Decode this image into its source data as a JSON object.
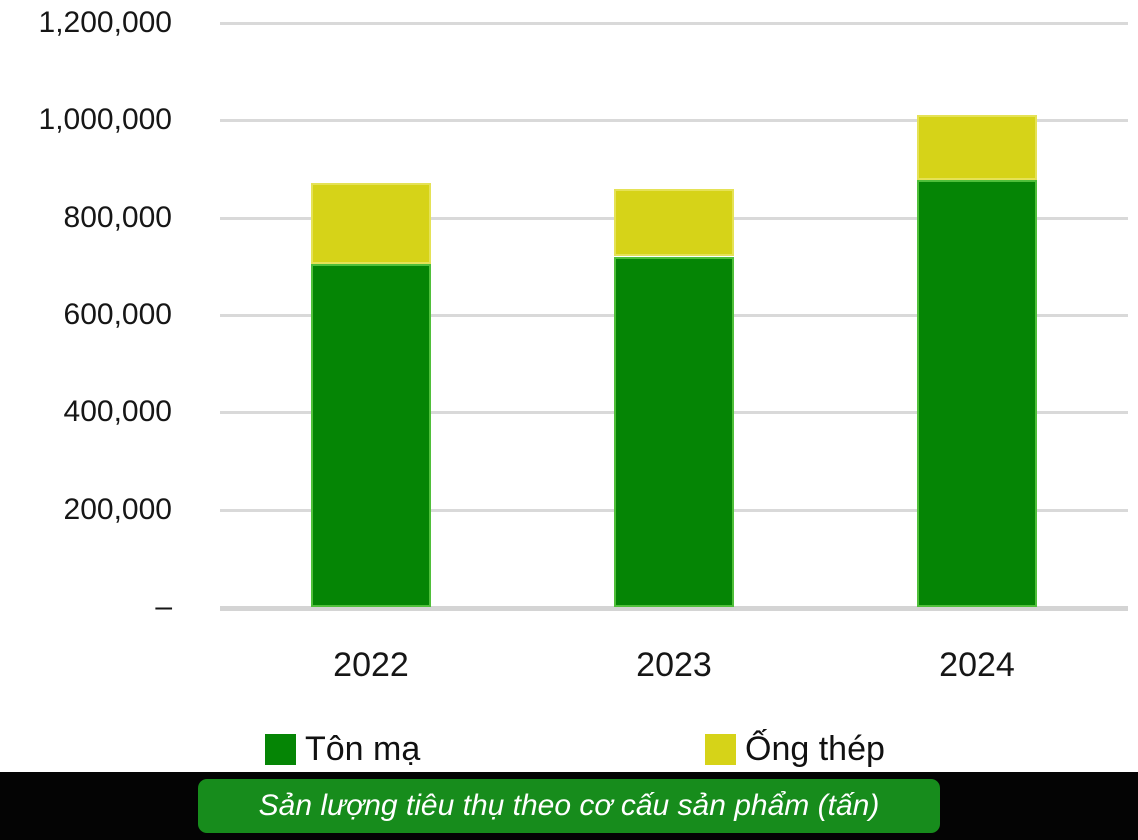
{
  "chart_data": {
    "type": "bar",
    "stacked": true,
    "title": "Sản lượng tiêu thụ theo cơ cấu sản phẩm (tấn)",
    "categories": [
      "2022",
      "2023",
      "2024"
    ],
    "series": [
      {
        "name": "Tôn mạ",
        "color": "#058505",
        "edge": "#4fbf3a",
        "values": [
          705000,
          720000,
          878000
        ]
      },
      {
        "name": "Ống thép",
        "color": "#d6d318",
        "edge": "#e5e256",
        "values": [
          167000,
          138000,
          133000
        ]
      }
    ],
    "totals": [
      872000,
      858000,
      1011000
    ],
    "ylim": [
      0,
      1200000
    ],
    "yticks": [
      {
        "value": 1200000,
        "label": "1,200,000"
      },
      {
        "value": 1000000,
        "label": "1,000,000"
      },
      {
        "value": 800000,
        "label": "800,000"
      },
      {
        "value": 600000,
        "label": "600,000"
      },
      {
        "value": 400000,
        "label": "400,000"
      },
      {
        "value": 200000,
        "label": "200,000"
      },
      {
        "value": 0,
        "label": "–"
      }
    ],
    "grid": true,
    "legend_position": "bottom"
  },
  "banner": {
    "strip_color": "#040404",
    "box_color": "#178c1c",
    "text_color": "#ffffff"
  },
  "colors": {
    "gridline": "#d9d9d9",
    "axis_text": "#161616"
  }
}
